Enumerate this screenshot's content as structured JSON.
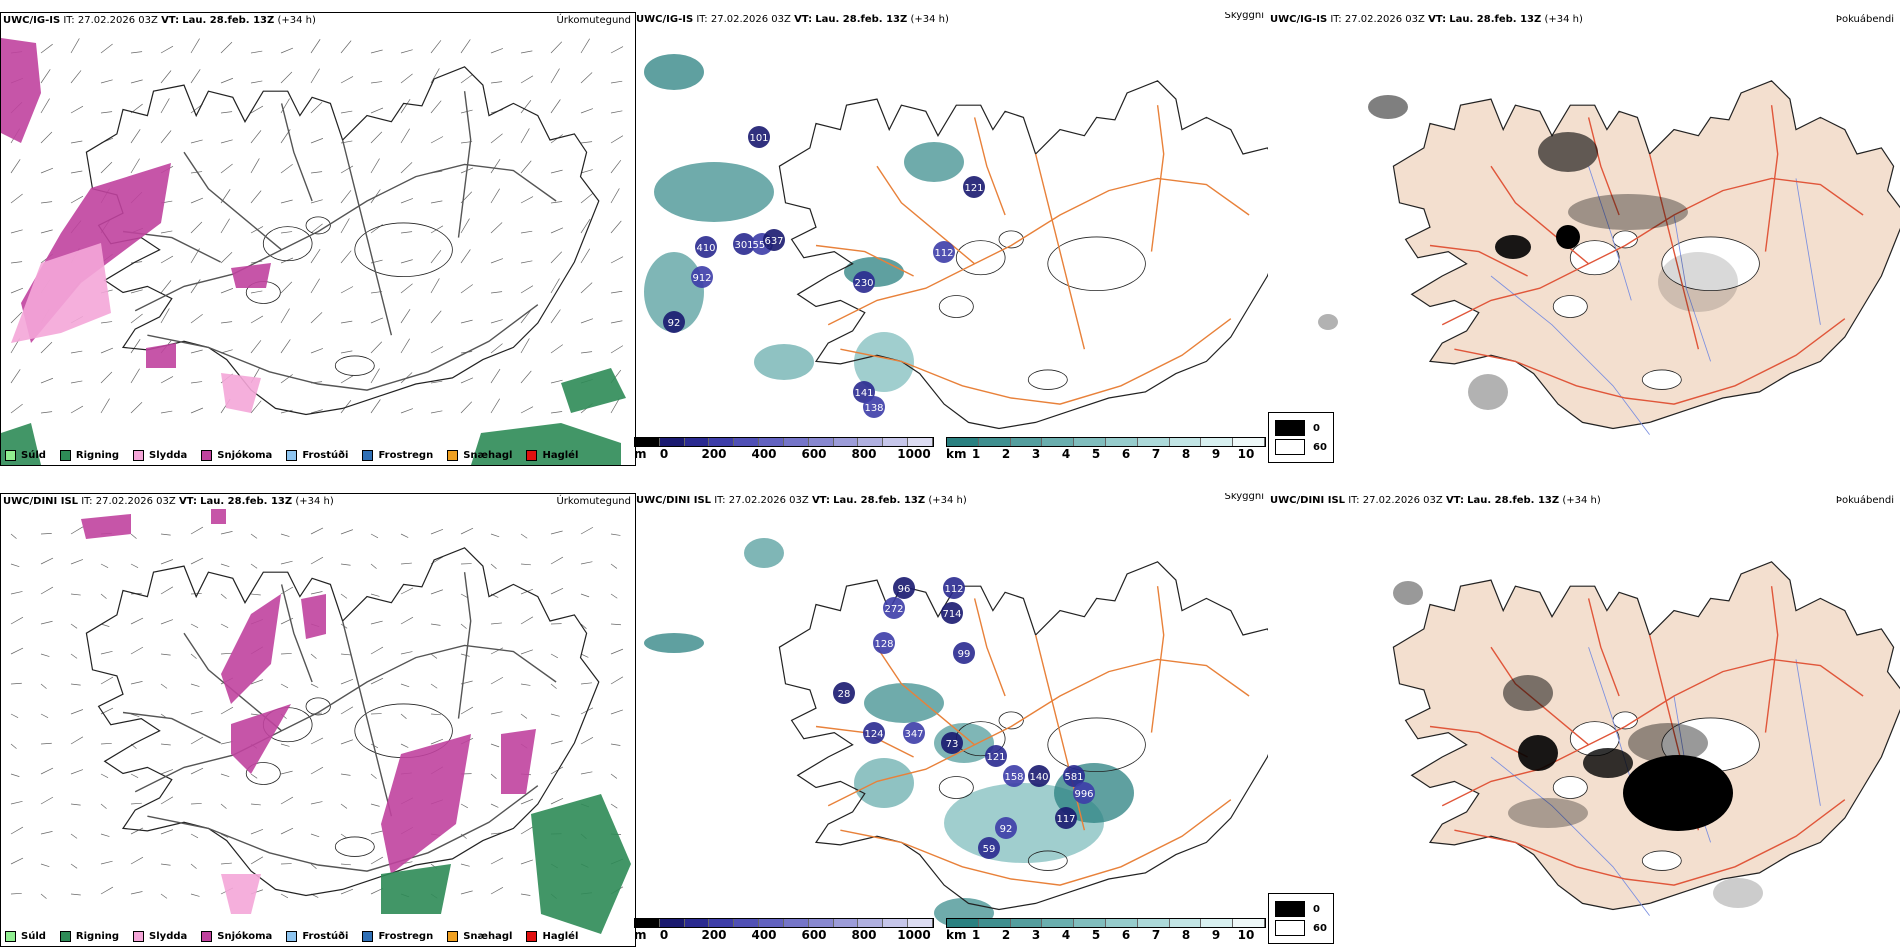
{
  "rows": [
    {
      "model": "UWC/IG-IS",
      "it": "IT: 27.02.2026 03Z",
      "vt_label": "VT:",
      "vt_value": "Lau. 28.feb. 13Z",
      "lead": "(+34 h)"
    },
    {
      "model": "UWC/DINI ISL",
      "it": "IT: 27.02.2026 03Z",
      "vt_label": "VT:",
      "vt_value": "Lau. 28.feb. 13Z",
      "lead": "(+34 h)"
    }
  ],
  "panel_titles": {
    "precip": "Úrkomutegund",
    "cloud": "Skyggni",
    "fog": "Þokuábendi"
  },
  "precip_legend": [
    {
      "label": "Súld",
      "color": "#90ee90"
    },
    {
      "label": "Rigning",
      "color": "#2e8b57"
    },
    {
      "label": "Slydda",
      "color": "#f4a6d8"
    },
    {
      "label": "Snjókoma",
      "color": "#c0429e"
    },
    {
      "label": "Frostúði",
      "color": "#8ec5f0"
    },
    {
      "label": "Frostregn",
      "color": "#2f6fb5"
    },
    {
      "label": "Snæhagl",
      "color": "#f0a020"
    },
    {
      "label": "Haglél",
      "color": "#e01010"
    }
  ],
  "ceiling_bar": {
    "unit": "m",
    "ticks": [
      "0",
      "200",
      "400",
      "600",
      "800",
      "1000"
    ],
    "colors": [
      "#000000",
      "#1a1a70",
      "#2a2a90",
      "#3d3da8",
      "#5050b5",
      "#6262c0",
      "#7575c8",
      "#8888d0",
      "#9c9cd8",
      "#b0b0e0",
      "#c6c6ea",
      "#dcdcf2"
    ]
  },
  "visibility_bar": {
    "unit": "km",
    "ticks": [
      "1",
      "2",
      "3",
      "4",
      "5",
      "6",
      "7",
      "8",
      "9",
      "10"
    ],
    "colors": [
      "#2a8080",
      "#3f8f8f",
      "#549e9e",
      "#6aaeae",
      "#80bdbd",
      "#96cccc",
      "#acd9d9",
      "#c2e5e5",
      "#d8f0f0",
      "#eef8f8"
    ]
  },
  "fog_legend": [
    {
      "label": "0",
      "color": "#000000"
    },
    {
      "label": "60",
      "color": "#ffffff"
    }
  ],
  "ceiling_labels_top": [
    "101",
    "410",
    "912",
    "92",
    "301",
    "558",
    "637",
    "230",
    "112",
    "121",
    "141",
    "138"
  ],
  "ceiling_labels_bottom": [
    "96",
    "112",
    "272",
    "714",
    "99",
    "128",
    "28",
    "124",
    "347",
    "73",
    "121",
    "158",
    "140",
    "581",
    "996",
    "117",
    "59",
    "92"
  ],
  "colors": {
    "coast": "#222222",
    "roads": "#e8813a",
    "roads_fog": "#e0563a",
    "land_fog": "#f3dfcf",
    "rivers": "#7a8ee0"
  }
}
